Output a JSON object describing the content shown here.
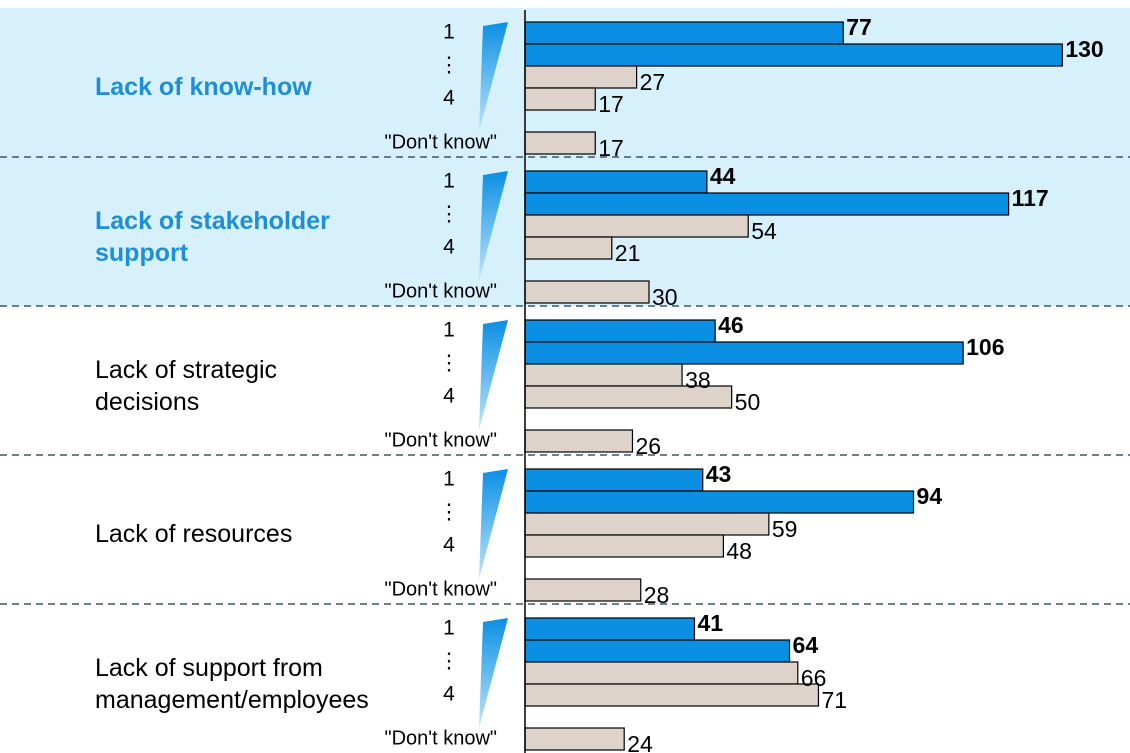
{
  "chart_data": {
    "type": "bar",
    "orientation": "horizontal",
    "categories": [
      [
        "Lack of know-how"
      ],
      [
        "Lack of stakeholder",
        "support"
      ],
      [
        "Lack of strategic",
        "decisions"
      ],
      [
        "Lack of resources"
      ],
      [
        "Lack of support from",
        "management/employees"
      ]
    ],
    "row_labels": [
      "1",
      "⋮",
      "4",
      "\"Don't know\""
    ],
    "series": [
      {
        "color": "#0a8fe3",
        "bold_labels": true,
        "values": [
          77,
          44,
          46,
          43,
          41
        ]
      },
      {
        "color": "#0a8fe3",
        "bold_labels": true,
        "values": [
          130,
          117,
          106,
          94,
          64
        ]
      },
      {
        "color": "#ddd3cb",
        "bold_labels": false,
        "values": [
          27,
          54,
          38,
          59,
          66
        ]
      },
      {
        "color": "#ddd3cb",
        "bold_labels": false,
        "values": [
          17,
          21,
          50,
          48,
          71
        ]
      },
      {
        "color": "#ddd3cb",
        "bold_labels": false,
        "values": [
          17,
          30,
          26,
          28,
          24
        ]
      }
    ],
    "highlighted": [
      0,
      1
    ],
    "highlight_color": "#d7f1fc",
    "highlight_text_color": "#1e8fd6",
    "xlim": [
      0,
      135
    ]
  }
}
